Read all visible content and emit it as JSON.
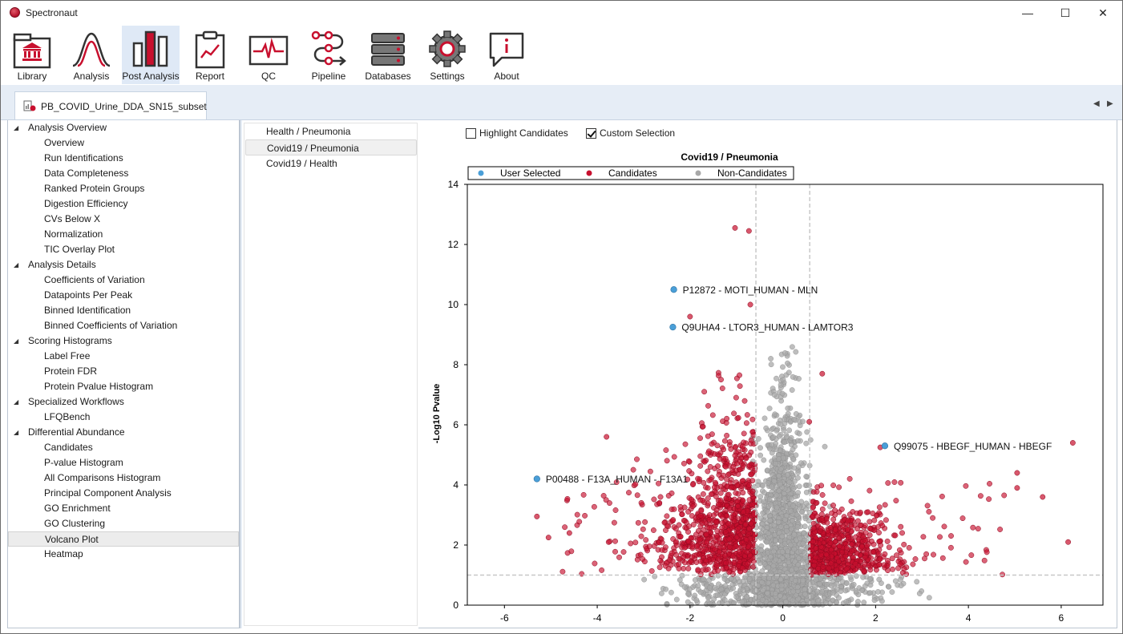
{
  "window": {
    "title": "Spectronaut",
    "minimize_glyph": "—",
    "maximize_glyph": "☐",
    "close_glyph": "✕"
  },
  "toolbar": {
    "items": [
      {
        "label": "Library",
        "icon": "library-icon"
      },
      {
        "label": "Analysis",
        "icon": "analysis-icon"
      },
      {
        "label": "Post Analysis",
        "icon": "post-analysis-icon",
        "active": true
      },
      {
        "label": "Report",
        "icon": "report-icon"
      },
      {
        "label": "QC",
        "icon": "qc-icon"
      },
      {
        "label": "Pipeline",
        "icon": "pipeline-icon"
      },
      {
        "label": "Databases",
        "icon": "databases-icon"
      },
      {
        "label": "Settings",
        "icon": "settings-icon"
      },
      {
        "label": "About",
        "icon": "about-icon"
      }
    ]
  },
  "document_tab": {
    "label": "PB_COVID_Urine_DDA_SN15_subset",
    "nav_prev": "◀",
    "nav_next": "▶"
  },
  "tree": [
    {
      "type": "group",
      "label": "Analysis Overview"
    },
    {
      "type": "leaf",
      "label": "Overview"
    },
    {
      "type": "leaf",
      "label": "Run Identifications"
    },
    {
      "type": "leaf",
      "label": "Data Completeness"
    },
    {
      "type": "leaf",
      "label": "Ranked Protein Groups"
    },
    {
      "type": "leaf",
      "label": "Digestion Efficiency"
    },
    {
      "type": "leaf",
      "label": "CVs Below X"
    },
    {
      "type": "leaf",
      "label": "Normalization"
    },
    {
      "type": "leaf",
      "label": "TIC Overlay Plot"
    },
    {
      "type": "group",
      "label": "Analysis Details"
    },
    {
      "type": "leaf",
      "label": "Coefficients of Variation"
    },
    {
      "type": "leaf",
      "label": "Datapoints Per Peak"
    },
    {
      "type": "leaf",
      "label": "Binned Identification"
    },
    {
      "type": "leaf",
      "label": "Binned Coefficients of Variation"
    },
    {
      "type": "group",
      "label": "Scoring Histograms"
    },
    {
      "type": "leaf",
      "label": "Label Free"
    },
    {
      "type": "leaf",
      "label": "Protein FDR"
    },
    {
      "type": "leaf",
      "label": "Protein Pvalue Histogram"
    },
    {
      "type": "group",
      "label": "Specialized Workflows"
    },
    {
      "type": "leaf",
      "label": "LFQBench"
    },
    {
      "type": "group",
      "label": "Differential Abundance"
    },
    {
      "type": "leaf",
      "label": "Candidates"
    },
    {
      "type": "leaf",
      "label": "P-value Histogram"
    },
    {
      "type": "leaf",
      "label": "All Comparisons Histogram"
    },
    {
      "type": "leaf",
      "label": "Principal Component Analysis"
    },
    {
      "type": "leaf",
      "label": "GO Enrichment"
    },
    {
      "type": "leaf",
      "label": "GO Clustering"
    },
    {
      "type": "leaf",
      "label": "Volcano Plot",
      "selected": true
    },
    {
      "type": "leaf",
      "label": "Heatmap"
    }
  ],
  "comparisons": [
    {
      "label": "Health / Pneumonia"
    },
    {
      "label": "Covid19 / Pneumonia",
      "selected": true
    },
    {
      "label": "Covid19 / Health"
    }
  ],
  "options": {
    "highlight_candidates": {
      "label": "Highlight Candidates",
      "checked": false
    },
    "custom_selection": {
      "label": "Custom Selection",
      "checked": true
    }
  },
  "colors": {
    "user_selected": "#4a9fd8",
    "candidates": "#c8102e",
    "non_candidates": "#a8a8a8",
    "threshold_line": "#c8c8c8"
  },
  "chart_data": {
    "type": "scatter",
    "title": "Covid19 / Pneumonia",
    "xlabel": "",
    "ylabel": "-Log10 Pvalue",
    "xlim": [
      -6.8,
      6.9
    ],
    "ylim": [
      0,
      14
    ],
    "xticks": [
      -6,
      -4,
      -2,
      0,
      2,
      4,
      6
    ],
    "yticks": [
      0,
      2,
      4,
      6,
      8,
      10,
      12,
      14
    ],
    "grid": false,
    "legend_position": "top",
    "series": [
      {
        "name": "User Selected",
        "color": "#4a9fd8"
      },
      {
        "name": "Candidates",
        "color": "#c8102e"
      },
      {
        "name": "Non-Candidates",
        "color": "#a8a8a8"
      }
    ],
    "thresholds": {
      "x": [
        -0.58,
        0.58
      ],
      "y": 1.0
    },
    "user_selected_points": [
      {
        "x": -2.35,
        "y": 10.5,
        "label": "P12872 - MOTI_HUMAN - MLN"
      },
      {
        "x": -2.37,
        "y": 9.25,
        "label": "Q9UHA4 - LTOR3_HUMAN - LAMTOR3"
      },
      {
        "x": 2.2,
        "y": 5.3,
        "label": "Q99075 - HBEGF_HUMAN - HBEGF"
      },
      {
        "x": -5.3,
        "y": 4.2,
        "label": "P00488 - F13A_HUMAN - F13A1"
      }
    ],
    "candidate_outliers": [
      {
        "x": -1.03,
        "y": 12.55
      },
      {
        "x": -0.73,
        "y": 12.45
      },
      {
        "x": -0.7,
        "y": 10.0
      },
      {
        "x": -2.0,
        "y": 9.6
      },
      {
        "x": 0.85,
        "y": 7.7
      },
      {
        "x": 0.57,
        "y": 6.1
      },
      {
        "x": 6.25,
        "y": 5.4
      },
      {
        "x": 6.15,
        "y": 2.1
      },
      {
        "x": -5.3,
        "y": 2.95
      },
      {
        "x": -5.05,
        "y": 2.25
      },
      {
        "x": -4.6,
        "y": 2.4
      },
      {
        "x": -3.8,
        "y": 5.6
      },
      {
        "x": 5.05,
        "y": 4.4
      },
      {
        "x": 5.05,
        "y": 3.9
      },
      {
        "x": 5.6,
        "y": 3.6
      },
      {
        "x": 2.1,
        "y": 5.25
      }
    ]
  }
}
